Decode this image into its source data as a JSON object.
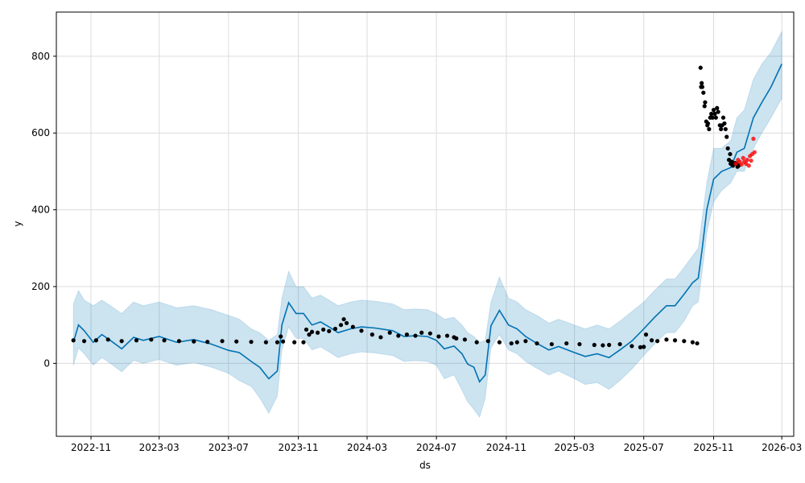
{
  "chart_data": {
    "type": "line",
    "title": "",
    "xlabel": "ds",
    "ylabel": "y",
    "xlim": [
      "2022-09-01",
      "2026-03-22"
    ],
    "ylim": [
      -190,
      915
    ],
    "grid": true,
    "x_ticks": [
      "2022-11",
      "2023-03",
      "2023-07",
      "2023-11",
      "2024-03",
      "2024-07",
      "2024-11",
      "2025-03",
      "2025-07",
      "2025-11",
      "2026-03"
    ],
    "y_ticks": [
      0,
      200,
      400,
      600,
      800
    ],
    "colors": {
      "forecast_line": "#0072b2",
      "uncertainty_band": "#0072b2",
      "observed_points": "#000000",
      "future_points": "#ff0000"
    },
    "forecast": {
      "dates": [
        "2022-10-01",
        "2022-10-10",
        "2022-10-20",
        "2022-11-05",
        "2022-11-20",
        "2022-12-05",
        "2022-12-25",
        "2023-01-15",
        "2023-02-01",
        "2023-03-01",
        "2023-04-01",
        "2023-05-01",
        "2023-06-01",
        "2023-07-01",
        "2023-07-20",
        "2023-08-10",
        "2023-08-25",
        "2023-09-10",
        "2023-09-25",
        "2023-10-03",
        "2023-10-15",
        "2023-10-28",
        "2023-11-10",
        "2023-11-25",
        "2023-12-10",
        "2023-12-25",
        "2024-01-10",
        "2024-02-01",
        "2024-02-20",
        "2024-03-15",
        "2024-04-15",
        "2024-05-05",
        "2024-05-25",
        "2024-06-15",
        "2024-07-01",
        "2024-07-15",
        "2024-08-01",
        "2024-08-15",
        "2024-08-25",
        "2024-09-05",
        "2024-09-15",
        "2024-09-25",
        "2024-10-05",
        "2024-10-20",
        "2024-11-05",
        "2024-11-20",
        "2024-12-05",
        "2024-12-25",
        "2025-01-15",
        "2025-02-01",
        "2025-03-01",
        "2025-03-20",
        "2025-04-10",
        "2025-05-01",
        "2025-05-20",
        "2025-06-10",
        "2025-07-01",
        "2025-07-20",
        "2025-08-10",
        "2025-08-25",
        "2025-09-10",
        "2025-09-25",
        "2025-10-05",
        "2025-10-12",
        "2025-10-20",
        "2025-11-01",
        "2025-11-15",
        "2025-12-01",
        "2025-12-12",
        "2025-12-25",
        "2026-01-10",
        "2026-01-25",
        "2026-02-10",
        "2026-03-01"
      ],
      "yhat": [
        55,
        100,
        85,
        55,
        75,
        60,
        38,
        68,
        60,
        70,
        55,
        62,
        50,
        34,
        28,
        5,
        -10,
        -40,
        -20,
        100,
        158,
        130,
        130,
        100,
        108,
        95,
        80,
        90,
        95,
        92,
        85,
        70,
        72,
        70,
        60,
        38,
        45,
        25,
        -2,
        -10,
        -48,
        -30,
        98,
        138,
        100,
        90,
        70,
        52,
        35,
        44,
        28,
        18,
        25,
        15,
        35,
        58,
        90,
        120,
        150,
        150,
        180,
        210,
        222,
        300,
        400,
        480,
        500,
        510,
        550,
        560,
        640,
        680,
        720,
        780
      ],
      "lower": [
        -5,
        40,
        25,
        -5,
        15,
        0,
        -22,
        8,
        0,
        10,
        -5,
        2,
        -10,
        -26,
        -45,
        -60,
        -90,
        -130,
        -85,
        35,
        95,
        65,
        65,
        35,
        43,
        30,
        15,
        25,
        30,
        27,
        20,
        5,
        7,
        5,
        -5,
        -40,
        -30,
        -70,
        -100,
        -120,
        -140,
        -90,
        40,
        75,
        35,
        25,
        5,
        -13,
        -30,
        -20,
        -40,
        -55,
        -50,
        -68,
        -45,
        -15,
        20,
        50,
        80,
        80,
        110,
        150,
        160,
        240,
        340,
        420,
        450,
        470,
        500,
        500,
        560,
        600,
        640,
        690
      ],
      "upper": [
        155,
        190,
        165,
        150,
        165,
        150,
        130,
        160,
        150,
        160,
        145,
        150,
        140,
        125,
        115,
        90,
        80,
        60,
        75,
        170,
        240,
        200,
        200,
        170,
        178,
        165,
        150,
        160,
        165,
        162,
        155,
        140,
        142,
        140,
        130,
        115,
        120,
        100,
        80,
        70,
        55,
        60,
        160,
        225,
        170,
        160,
        140,
        125,
        105,
        115,
        100,
        90,
        100,
        90,
        110,
        135,
        160,
        190,
        220,
        220,
        250,
        280,
        300,
        380,
        470,
        560,
        560,
        580,
        640,
        660,
        740,
        780,
        810,
        865
      ]
    },
    "observed": {
      "dates": [
        "2022-10-01",
        "2022-10-20",
        "2022-11-10",
        "2022-12-01",
        "2022-12-25",
        "2023-01-20",
        "2023-02-15",
        "2023-03-10",
        "2023-04-05",
        "2023-05-01",
        "2023-05-25",
        "2023-06-20",
        "2023-07-15",
        "2023-08-10",
        "2023-09-05",
        "2023-09-25",
        "2023-10-01",
        "2023-10-05",
        "2023-10-25",
        "2023-11-10",
        "2023-11-15",
        "2023-11-20",
        "2023-11-25",
        "2023-12-05",
        "2023-12-15",
        "2023-12-25",
        "2024-01-05",
        "2024-01-15",
        "2024-01-20",
        "2024-01-25",
        "2024-02-05",
        "2024-02-20",
        "2024-03-10",
        "2024-03-25",
        "2024-04-10",
        "2024-04-25",
        "2024-05-10",
        "2024-05-25",
        "2024-06-05",
        "2024-06-20",
        "2024-07-05",
        "2024-07-20",
        "2024-08-01",
        "2024-08-05",
        "2024-08-20",
        "2024-09-10",
        "2024-09-30",
        "2024-10-20",
        "2024-11-10",
        "2024-11-20",
        "2024-12-05",
        "2024-12-25",
        "2025-01-20",
        "2025-02-15",
        "2025-03-10",
        "2025-04-05",
        "2025-04-20",
        "2025-05-01",
        "2025-05-20",
        "2025-06-10",
        "2025-06-25",
        "2025-07-01",
        "2025-07-05",
        "2025-07-15",
        "2025-07-25",
        "2025-08-10",
        "2025-08-25",
        "2025-09-10",
        "2025-09-25",
        "2025-10-03",
        "2025-10-09",
        "2025-10-10",
        "2025-10-11",
        "2025-10-12",
        "2025-10-14",
        "2025-10-16",
        "2025-10-17",
        "2025-10-19",
        "2025-10-21",
        "2025-10-22",
        "2025-10-24",
        "2025-10-26",
        "2025-10-28",
        "2025-10-30",
        "2025-11-01",
        "2025-11-03",
        "2025-11-05",
        "2025-11-07",
        "2025-11-09",
        "2025-11-12",
        "2025-11-14",
        "2025-11-16",
        "2025-11-18",
        "2025-11-20",
        "2025-11-22",
        "2025-11-24",
        "2025-11-26",
        "2025-11-28",
        "2025-11-30",
        "2025-12-01",
        "2025-12-03",
        "2025-12-05",
        "2025-12-07",
        "2025-12-09",
        "2025-12-11",
        "2025-12-13",
        "2025-12-15"
      ],
      "y": [
        60,
        58,
        60,
        62,
        58,
        60,
        62,
        60,
        58,
        57,
        56,
        58,
        57,
        56,
        55,
        55,
        70,
        57,
        55,
        55,
        88,
        75,
        82,
        80,
        88,
        84,
        90,
        100,
        115,
        105,
        95,
        85,
        75,
        68,
        80,
        72,
        75,
        72,
        80,
        78,
        70,
        72,
        68,
        65,
        62,
        55,
        58,
        55,
        52,
        55,
        58,
        52,
        50,
        52,
        50,
        48,
        47,
        48,
        50,
        45,
        42,
        43,
        75,
        60,
        58,
        62,
        60,
        58,
        55,
        52,
        770,
        720,
        730,
        720,
        705,
        670,
        680,
        630,
        620,
        625,
        610,
        640,
        650,
        640,
        660,
        650,
        640,
        665,
        655,
        620,
        610,
        620,
        640,
        625,
        610,
        590,
        560,
        530,
        545,
        520,
        525,
        515,
        520,
        522,
        520,
        512,
        515
      ]
    },
    "future": {
      "dates": [
        "2025-12-10",
        "2025-12-14",
        "2025-12-17",
        "2025-12-20",
        "2025-12-23",
        "2025-12-25",
        "2025-12-28",
        "2025-12-30",
        "2026-01-02",
        "2026-01-04",
        "2026-01-06",
        "2026-01-08",
        "2026-01-10",
        "2026-01-12"
      ],
      "y": [
        520,
        530,
        525,
        518,
        535,
        525,
        520,
        530,
        515,
        540,
        528,
        545,
        585,
        550
      ]
    }
  }
}
